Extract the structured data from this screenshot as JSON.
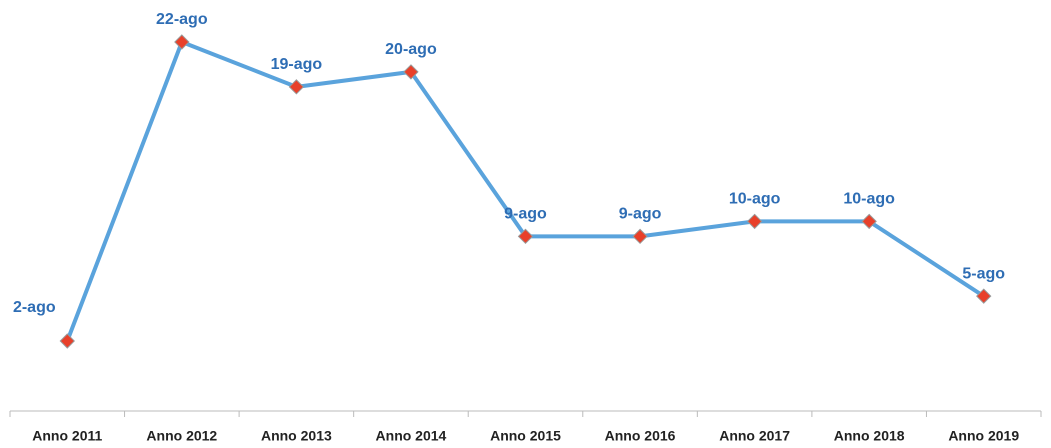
{
  "chart_data": {
    "type": "line",
    "categories": [
      "Anno 2011",
      "Anno 2012",
      "Anno 2013",
      "Anno 2014",
      "Anno 2015",
      "Anno 2016",
      "Anno 2017",
      "Anno 2018",
      "Anno 2019"
    ],
    "series": [
      {
        "name": "",
        "color": "#5aa3dc",
        "values": [
          2,
          22,
          19,
          20,
          9,
          9,
          10,
          10,
          5
        ],
        "value_labels": [
          "2-ago",
          "22-ago",
          "19-ago",
          "20-ago",
          "9-ago",
          "9-ago",
          "10-ago",
          "10-ago",
          "5-ago"
        ]
      }
    ],
    "marker_color": "#e8402a"
  }
}
